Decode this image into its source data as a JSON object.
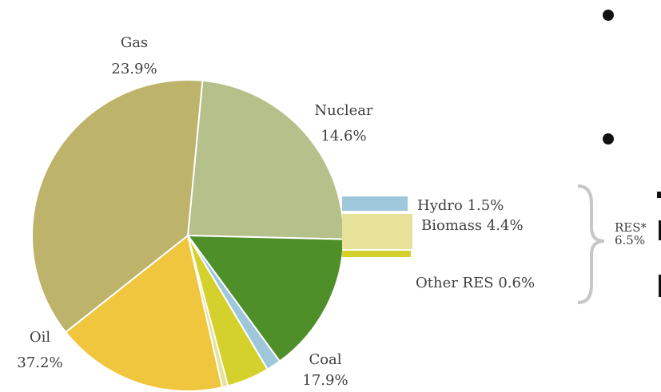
{
  "chart_data": {
    "type": "pie",
    "slices": [
      {
        "key": "gas",
        "name": "Gas",
        "value": 23.9,
        "value_label": "23.9%",
        "color": "#b6c08a"
      },
      {
        "key": "nuclear",
        "name": "Nuclear",
        "value": 14.6,
        "value_label": "14.6%",
        "color": "#4f8f2a"
      },
      {
        "key": "hydro",
        "name": "Hydro",
        "value": 1.5,
        "value_label": "1.5%",
        "color": "#9fc7dc"
      },
      {
        "key": "biomass",
        "name": "Biomass",
        "value": 4.4,
        "value_label": "4.4%",
        "color": "#d5d12c"
      },
      {
        "key": "other_res",
        "name": "Other RES",
        "value": 0.6,
        "value_label": "0.6%",
        "color": "#e7e19a"
      },
      {
        "key": "coal",
        "name": "Coal",
        "value": 17.9,
        "value_label": "17.9%",
        "color": "#efc63d"
      },
      {
        "key": "oil",
        "name": "Oil",
        "value": 37.2,
        "value_label": "37.2%",
        "color": "#bdb36a"
      }
    ],
    "renewables_group": {
      "label": "RES*",
      "value_label": "6.5%",
      "members": [
        "Hydro",
        "Biomass",
        "Other RES"
      ]
    },
    "legend": "none"
  }
}
